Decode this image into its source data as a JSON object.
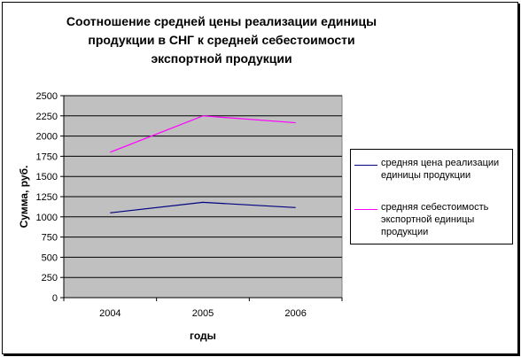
{
  "chart_data": {
    "type": "line",
    "title": "Соотношение средней цены реализации единицы продукции в СНГ к средней себестоимости экспортной продукции",
    "xlabel": "годы",
    "ylabel": "Сумма, руб.",
    "categories": [
      "2004",
      "2005",
      "2006"
    ],
    "ylim": [
      0,
      2500
    ],
    "yticks": [
      "0",
      "250",
      "500",
      "750",
      "1000",
      "1250",
      "1500",
      "1750",
      "2000",
      "2250",
      "2500"
    ],
    "grid": true,
    "legend_position": "right",
    "plot_background": "#c0c0c0",
    "series": [
      {
        "name": "средняя цена реализации единицы продукции",
        "color": "#000080",
        "values": [
          1050,
          1180,
          1115
        ]
      },
      {
        "name": "средняя себестоимость экспортной единицы продукции",
        "color": "#ff00ff",
        "values": [
          1800,
          2250,
          2165
        ]
      }
    ]
  }
}
